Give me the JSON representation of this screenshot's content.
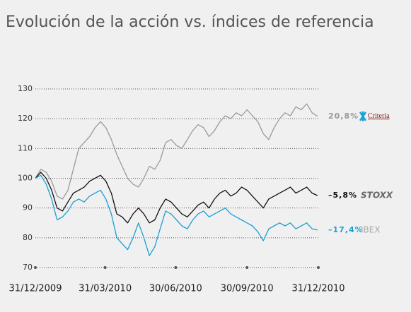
{
  "chart_data": {
    "type": "line",
    "title": "Evolución de la acción vs. índices de referencia",
    "x": [
      "2009-12-31",
      "2010-01-07",
      "2010-01-14",
      "2010-01-21",
      "2010-01-28",
      "2010-02-04",
      "2010-02-11",
      "2010-02-18",
      "2010-02-25",
      "2010-03-04",
      "2010-03-11",
      "2010-03-18",
      "2010-03-25",
      "2010-04-01",
      "2010-04-08",
      "2010-04-15",
      "2010-04-22",
      "2010-04-29",
      "2010-05-06",
      "2010-05-13",
      "2010-05-20",
      "2010-05-27",
      "2010-06-03",
      "2010-06-10",
      "2010-06-17",
      "2010-06-24",
      "2010-07-01",
      "2010-07-08",
      "2010-07-15",
      "2010-07-22",
      "2010-07-29",
      "2010-08-05",
      "2010-08-12",
      "2010-08-19",
      "2010-08-26",
      "2010-09-02",
      "2010-09-09",
      "2010-09-16",
      "2010-09-23",
      "2010-09-30",
      "2010-10-07",
      "2010-10-14",
      "2010-10-21",
      "2010-10-28",
      "2010-11-04",
      "2010-11-11",
      "2010-11-18",
      "2010-11-25",
      "2010-12-02",
      "2010-12-09",
      "2010-12-16",
      "2010-12-23",
      "2010-12-30"
    ],
    "series": [
      {
        "name": "Criteria",
        "color": "#9a9a9a",
        "end_label": "20,8%",
        "values": [
          100,
          103,
          102,
          99,
          94,
          93,
          96,
          103,
          110,
          112,
          114,
          117,
          119,
          117,
          113,
          108,
          104,
          100,
          98,
          97,
          100,
          104,
          103,
          106,
          112,
          113,
          111,
          110,
          113,
          116,
          118,
          117,
          114,
          116,
          119,
          121,
          120,
          122,
          121,
          123,
          121,
          119,
          115,
          113,
          117,
          120,
          122,
          121,
          124,
          123,
          125,
          122,
          120.8
        ]
      },
      {
        "name": "STOXX",
        "color": "#111111",
        "end_label": "–5,8%",
        "values": [
          100,
          102,
          100,
          96,
          90,
          89,
          92,
          95,
          96,
          97,
          99,
          100,
          101,
          99,
          95,
          88,
          87,
          85,
          88,
          90,
          88,
          85,
          86,
          90,
          93,
          92,
          90,
          88,
          87,
          89,
          91,
          92,
          90,
          93,
          95,
          96,
          94,
          95,
          97,
          96,
          94,
          92,
          90,
          93,
          94,
          95,
          96,
          97,
          95,
          96,
          97,
          95,
          94.2
        ]
      },
      {
        "name": "IBEX",
        "color": "#1a9fd6",
        "end_label": "–17,4%",
        "values": [
          100,
          101,
          98,
          93,
          86,
          87,
          89,
          92,
          93,
          92,
          94,
          95,
          96,
          93,
          88,
          80,
          78,
          76,
          80,
          85,
          80,
          74,
          77,
          83,
          89,
          88,
          86,
          84,
          83,
          86,
          88,
          89,
          87,
          88,
          89,
          90,
          88,
          87,
          86,
          85,
          84,
          82,
          79,
          83,
          84,
          85,
          84,
          85,
          83,
          84,
          85,
          83,
          82.6
        ]
      }
    ],
    "xlim": [
      "2009-12-31",
      "2010-12-31"
    ],
    "xticks": [
      {
        "value": "2009-12-31",
        "label": "31/12/2009"
      },
      {
        "value": "2010-03-31",
        "label": "31/03/2010"
      },
      {
        "value": "2010-06-30",
        "label": "30/06/2010"
      },
      {
        "value": "2010-09-30",
        "label": "30/09/2010"
      },
      {
        "value": "2010-12-31",
        "label": "31/12/2010"
      }
    ],
    "ylim": [
      70,
      130
    ],
    "yticks": [
      70,
      80,
      90,
      100,
      110,
      120,
      130
    ],
    "grid": true
  }
}
